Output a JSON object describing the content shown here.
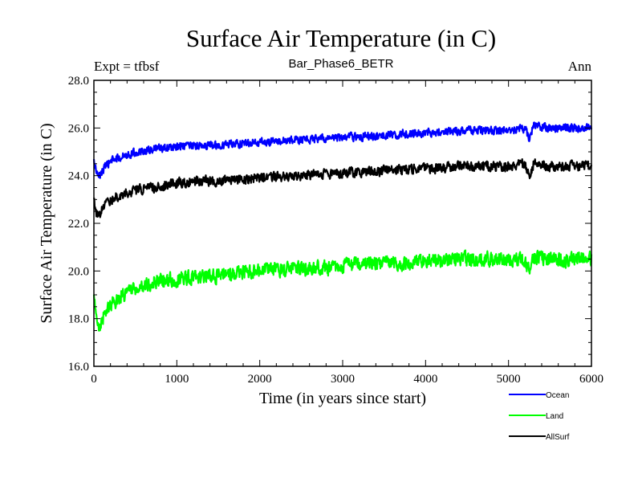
{
  "chart_data": {
    "type": "line",
    "title": "Surface Air Temperature (in C)",
    "left_subtitle": "Expt = tfbsf",
    "center_subtitle": "Bar_Phase6_BETR",
    "right_subtitle": "Ann",
    "xlabel": "Time (in years since start)",
    "ylabel": "Surface Air Temperature (in C)",
    "xlim": [
      0,
      6000
    ],
    "ylim": [
      16.0,
      28.0
    ],
    "x_ticks": [
      0,
      1000,
      2000,
      3000,
      4000,
      5000,
      6000
    ],
    "x_tick_labels": [
      "0",
      "1000",
      "2000",
      "3000",
      "4000",
      "5000",
      "6000"
    ],
    "y_ticks": [
      16.0,
      18.0,
      20.0,
      22.0,
      24.0,
      26.0,
      28.0
    ],
    "y_tick_labels": [
      "16.0",
      "18.0",
      "20.0",
      "22.0",
      "24.0",
      "26.0",
      "28.0"
    ],
    "grid": false,
    "legend_position": "bottom-right, below plot",
    "series": [
      {
        "name": "Ocean",
        "color": "#0000ff",
        "x": [
          0,
          50,
          100,
          200,
          400,
          700,
          1000,
          1500,
          2000,
          2500,
          3000,
          3500,
          4000,
          4500,
          5000,
          5200,
          5250,
          5300,
          5500,
          6000
        ],
        "values": [
          24.6,
          23.9,
          24.2,
          24.6,
          24.9,
          25.1,
          25.2,
          25.3,
          25.4,
          25.5,
          25.6,
          25.7,
          25.8,
          25.9,
          25.9,
          26.0,
          25.5,
          26.1,
          26.0,
          26.0
        ],
        "noise": 0.18
      },
      {
        "name": "Land",
        "color": "#00ff00",
        "x": [
          0,
          50,
          100,
          200,
          400,
          700,
          1000,
          1500,
          2000,
          2500,
          3000,
          3500,
          4000,
          4500,
          5000,
          5200,
          5250,
          5300,
          5500,
          6000
        ],
        "values": [
          18.8,
          17.6,
          18.0,
          18.6,
          19.1,
          19.5,
          19.7,
          19.8,
          20.0,
          20.1,
          20.2,
          20.3,
          20.4,
          20.5,
          20.5,
          20.5,
          19.9,
          20.6,
          20.5,
          20.5
        ],
        "noise": 0.32
      },
      {
        "name": "AllSurf",
        "color": "#000000",
        "x": [
          0,
          50,
          100,
          200,
          400,
          700,
          1000,
          1500,
          2000,
          2500,
          3000,
          3500,
          4000,
          4500,
          5000,
          5200,
          5250,
          5300,
          5500,
          6000
        ],
        "values": [
          22.9,
          22.2,
          22.6,
          23.0,
          23.3,
          23.5,
          23.7,
          23.8,
          23.9,
          24.0,
          24.1,
          24.2,
          24.3,
          24.4,
          24.4,
          24.5,
          23.9,
          24.5,
          24.4,
          24.4
        ],
        "noise": 0.22
      }
    ]
  }
}
